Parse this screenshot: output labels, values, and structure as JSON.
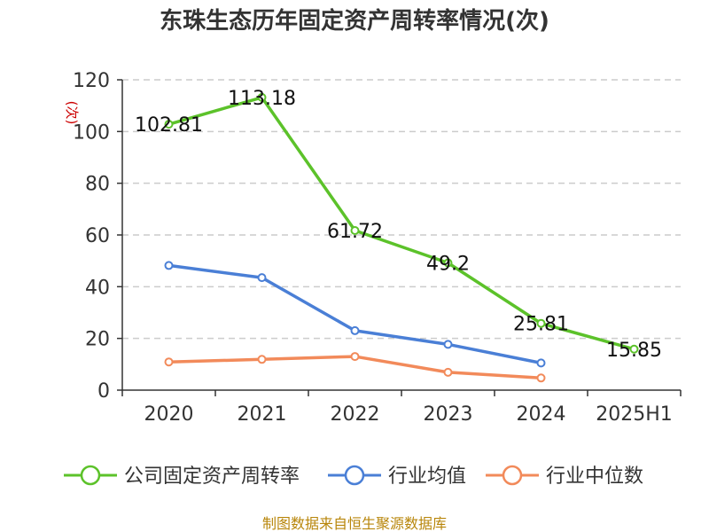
{
  "chart_data": {
    "type": "line",
    "title": "东珠生态历年固定资产周转率情况(次)",
    "ylabel": "(次)",
    "xlabel": "",
    "categories": [
      "2020",
      "2021",
      "2022",
      "2023",
      "2024",
      "2025H1"
    ],
    "ylim": [
      0,
      120
    ],
    "yticks": [
      0,
      20,
      40,
      60,
      80,
      100,
      120
    ],
    "grid": true,
    "legend_position": "bottom",
    "series": [
      {
        "name": "公司固定资产周转率",
        "color": "#5cc22a",
        "values": [
          102.81,
          113.18,
          61.72,
          49.2,
          25.81,
          15.85
        ],
        "labels": [
          "102.81",
          "113.18",
          "61.72",
          "49.2",
          "25.81",
          "15.85"
        ]
      },
      {
        "name": "行业均值",
        "color": "#4a7fd6",
        "values": [
          48.2,
          43.5,
          23.0,
          17.7,
          10.5,
          null
        ]
      },
      {
        "name": "行业中位数",
        "color": "#f28a5a",
        "values": [
          10.9,
          11.9,
          13.0,
          6.9,
          4.7,
          null
        ]
      }
    ]
  },
  "source": "制图数据来自恒生聚源数据库"
}
